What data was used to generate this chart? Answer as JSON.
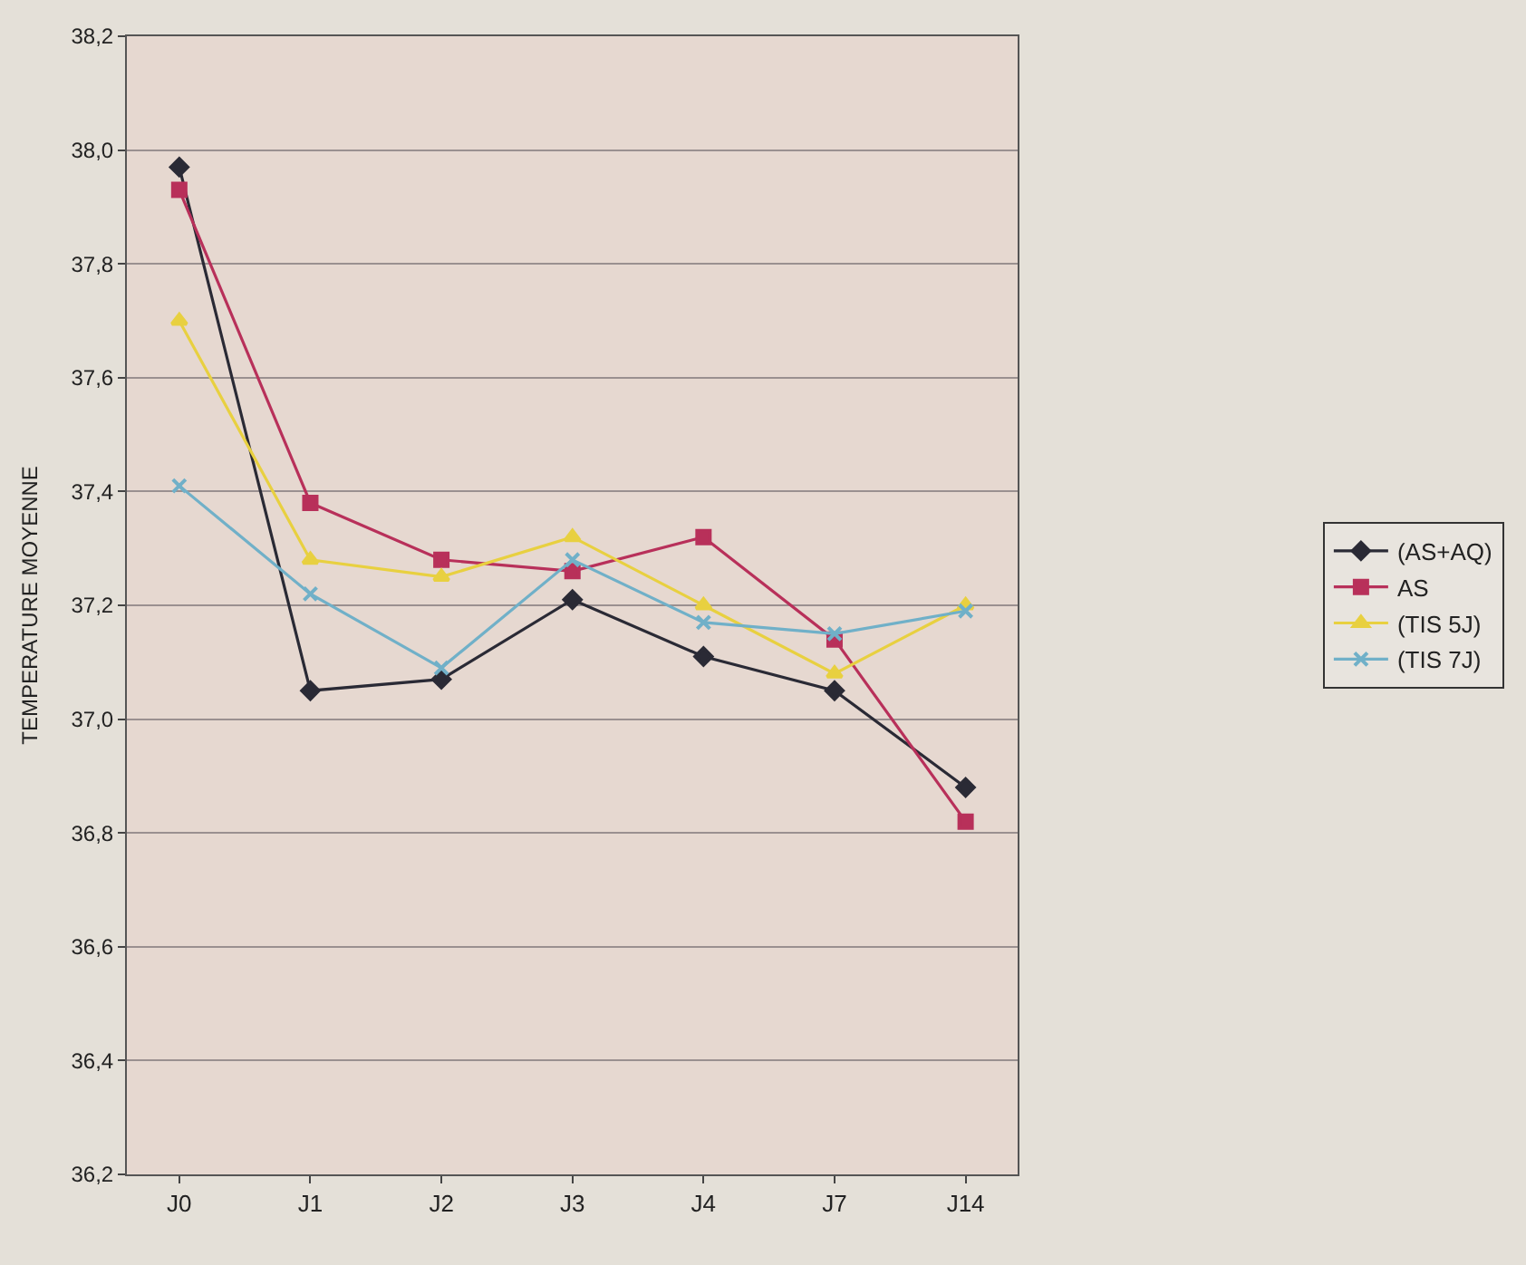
{
  "chart_data": {
    "type": "line",
    "ylabel": "TEMPERATURE MOYENNE",
    "categories": [
      "J0",
      "J1",
      "J2",
      "J3",
      "J4",
      "J7",
      "J14"
    ],
    "series": [
      {
        "name": "(AS+AQ)",
        "color": "#2a2a35",
        "marker": "diamond",
        "values": [
          37.97,
          37.05,
          37.07,
          37.21,
          37.11,
          37.05,
          36.88
        ]
      },
      {
        "name": "AS",
        "color": "#b8305a",
        "marker": "square",
        "values": [
          37.93,
          37.38,
          37.28,
          37.26,
          37.32,
          37.14,
          36.82
        ]
      },
      {
        "name": "(TIS 5J)",
        "color": "#e8d040",
        "marker": "triangle",
        "values": [
          37.7,
          37.28,
          37.25,
          37.32,
          37.2,
          37.08,
          37.2
        ]
      },
      {
        "name": "(TIS 7J)",
        "color": "#70b0c8",
        "marker": "cross",
        "values": [
          37.41,
          37.22,
          37.09,
          37.28,
          37.17,
          37.15,
          37.19
        ]
      }
    ],
    "ylim": [
      36.2,
      38.2
    ],
    "yticks": [
      {
        "value": 36.2,
        "label": "36,2"
      },
      {
        "value": 36.4,
        "label": "36,4"
      },
      {
        "value": 36.6,
        "label": "36,6"
      },
      {
        "value": 36.8,
        "label": "36,8"
      },
      {
        "value": 37.0,
        "label": "37,0"
      },
      {
        "value": 37.2,
        "label": "37,2"
      },
      {
        "value": 37.4,
        "label": "37,4"
      },
      {
        "value": 37.6,
        "label": "37,6"
      },
      {
        "value": 37.8,
        "label": "37,8"
      },
      {
        "value": 38.0,
        "label": "38,0"
      },
      {
        "value": 38.2,
        "label": "38,2"
      }
    ],
    "grid": "y",
    "legend": "right",
    "line_style": "solid"
  }
}
